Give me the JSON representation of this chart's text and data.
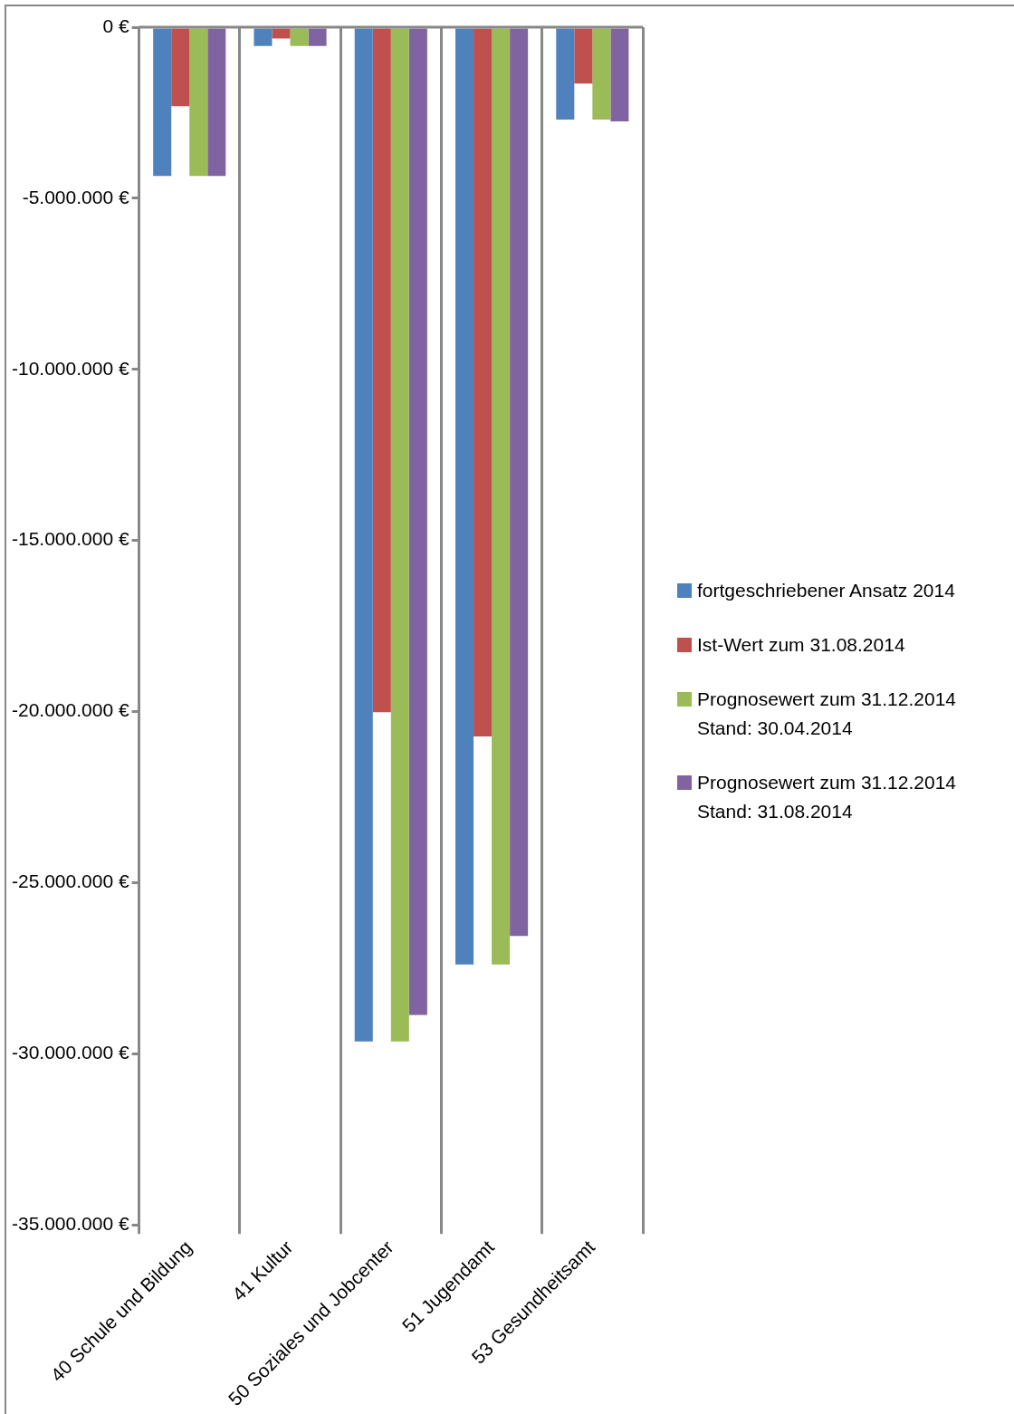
{
  "chart_data": {
    "type": "bar",
    "categories": [
      "40 Schule und Bildung",
      "41 Kultur",
      "50 Soziales und Jobcenter",
      "51 Jugendamt",
      "53 Gesundheitsamt"
    ],
    "series": [
      {
        "name": "fortgeschriebener Ansatz 2014",
        "color": "#4f81bd",
        "values": [
          -4350000,
          -550000,
          -29640000,
          -27390000,
          -2700000
        ]
      },
      {
        "name": "Ist-Wert zum 31.08.2014",
        "color": "#c0504d",
        "values": [
          -2310000,
          -330000,
          -20020000,
          -20730000,
          -1650000
        ]
      },
      {
        "name": "Prognosewert zum 31.12.2014 Stand: 30.04.2014",
        "color": "#9bbb59",
        "values": [
          -4350000,
          -550000,
          -29640000,
          -27390000,
          -2700000
        ]
      },
      {
        "name": "Prognosewert zum 31.12.2014 Stand: 31.08.2014",
        "color": "#8064a2",
        "values": [
          -4350000,
          -550000,
          -28870000,
          -26560000,
          -2750000
        ]
      }
    ],
    "ylim": [
      -35000000,
      0
    ],
    "yticks": [
      {
        "value": 0,
        "label": "0 €"
      },
      {
        "value": -5000000,
        "label": "-5.000.000 €"
      },
      {
        "value": -10000000,
        "label": "-10.000.000 €"
      },
      {
        "value": -15000000,
        "label": "-15.000.000 €"
      },
      {
        "value": -20000000,
        "label": "-20.000.000 €"
      },
      {
        "value": -25000000,
        "label": "-25.000.000 €"
      },
      {
        "value": -30000000,
        "label": "-30.000.000 €"
      },
      {
        "value": -35000000,
        "label": "-35.000.000 €"
      }
    ],
    "grid": "x",
    "legend": "right"
  }
}
